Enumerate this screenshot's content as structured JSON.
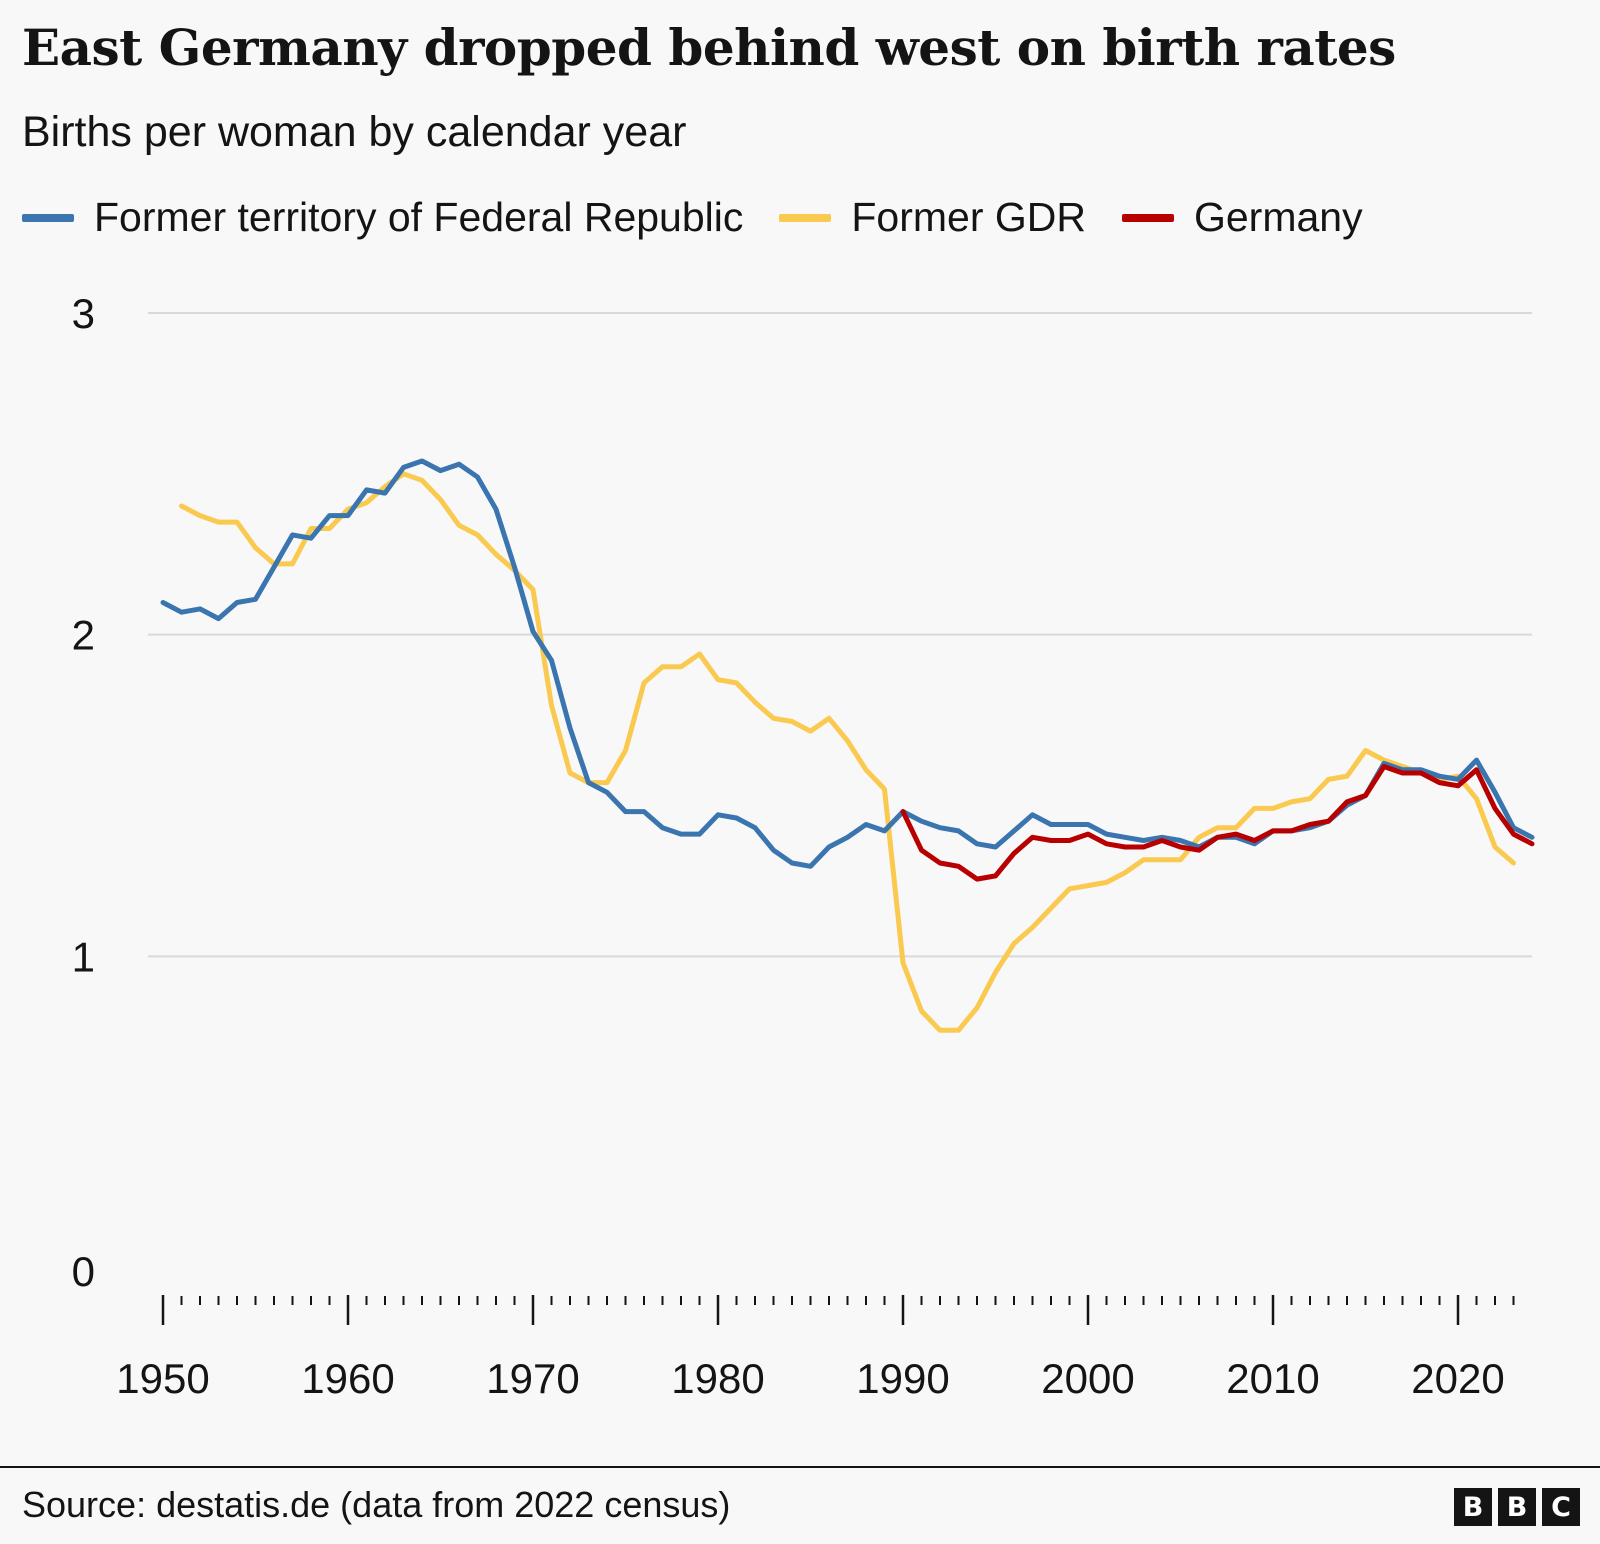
{
  "header": {
    "title": "East Germany dropped behind west on birth rates",
    "subtitle": "Births per woman by calendar year"
  },
  "footer": {
    "source": "Source: destatis.de (data from 2022 census)",
    "logo": [
      "B",
      "B",
      "C"
    ]
  },
  "colors": {
    "background": "#f8f8f8",
    "grid": "#d9d9d9",
    "text": "#141414"
  },
  "chart_data": {
    "type": "line",
    "title": "East Germany dropped behind west on birth rates",
    "subtitle": "Births per woman by calendar year",
    "xlabel": "",
    "ylabel": "",
    "xlim": [
      1950,
      2023
    ],
    "ylim": [
      0,
      3
    ],
    "grid": true,
    "legend_position": "top",
    "y_ticks": [
      0,
      1,
      2,
      3
    ],
    "x_ticks": [
      1950,
      1960,
      1970,
      1980,
      1990,
      2000,
      2010,
      2020
    ],
    "series": [
      {
        "name": "Former territory of Federal Republic",
        "color": "#3a75b0",
        "x_start": 1950,
        "values": [
          2.1,
          2.07,
          2.08,
          2.05,
          2.1,
          2.11,
          2.21,
          2.31,
          2.3,
          2.37,
          2.37,
          2.45,
          2.44,
          2.52,
          2.54,
          2.51,
          2.53,
          2.49,
          2.39,
          2.21,
          2.01,
          1.92,
          1.71,
          1.54,
          1.51,
          1.45,
          1.45,
          1.4,
          1.38,
          1.38,
          1.44,
          1.43,
          1.4,
          1.33,
          1.29,
          1.28,
          1.34,
          1.37,
          1.41,
          1.39,
          1.45,
          1.42,
          1.4,
          1.39,
          1.35,
          1.34,
          1.39,
          1.44,
          1.41,
          1.41,
          1.41,
          1.38,
          1.37,
          1.36,
          1.37,
          1.36,
          1.34,
          1.37,
          1.37,
          1.35,
          1.39,
          1.39,
          1.4,
          1.42,
          1.47,
          1.5,
          1.6,
          1.58,
          1.58,
          1.56,
          1.55,
          1.61,
          1.51,
          1.4,
          1.37
        ]
      },
      {
        "name": "Former GDR",
        "color": "#fac94f",
        "x_start": 1951,
        "values": [
          2.4,
          2.37,
          2.35,
          2.35,
          2.27,
          2.22,
          2.22,
          2.33,
          2.33,
          2.39,
          2.41,
          2.46,
          2.5,
          2.48,
          2.42,
          2.34,
          2.31,
          2.25,
          2.2,
          2.14,
          1.78,
          1.57,
          1.54,
          1.54,
          1.64,
          1.85,
          1.9,
          1.9,
          1.94,
          1.86,
          1.85,
          1.79,
          1.74,
          1.73,
          1.7,
          1.74,
          1.67,
          1.58,
          1.52,
          0.98,
          0.83,
          0.77,
          0.77,
          0.84,
          0.95,
          1.04,
          1.09,
          1.15,
          1.21,
          1.22,
          1.23,
          1.26,
          1.3,
          1.3,
          1.3,
          1.37,
          1.4,
          1.4,
          1.46,
          1.46,
          1.48,
          1.49,
          1.55,
          1.56,
          1.64,
          1.61,
          1.59,
          1.57,
          1.55,
          1.56,
          1.49,
          1.34,
          1.29
        ]
      },
      {
        "name": "Germany",
        "color": "#b80000",
        "x_start": 1990,
        "values": [
          1.45,
          1.33,
          1.29,
          1.28,
          1.24,
          1.25,
          1.32,
          1.37,
          1.36,
          1.36,
          1.38,
          1.35,
          1.34,
          1.34,
          1.36,
          1.34,
          1.33,
          1.37,
          1.38,
          1.36,
          1.39,
          1.39,
          1.41,
          1.42,
          1.48,
          1.5,
          1.59,
          1.57,
          1.57,
          1.54,
          1.53,
          1.58,
          1.46,
          1.38,
          1.35
        ]
      }
    ]
  }
}
